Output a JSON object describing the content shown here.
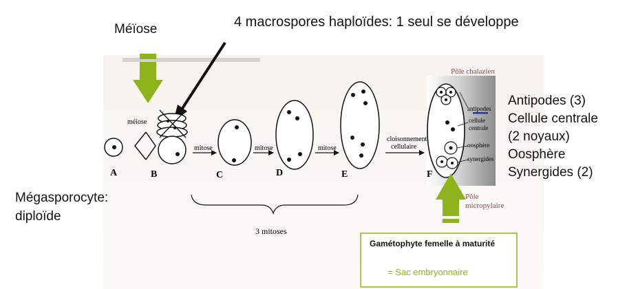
{
  "annotations": {
    "meiose_title": "Méïose",
    "macrospores": "4 macrospores haploïdes: 1 seul se développe",
    "megasporocyte_line1": "Mégasporocyte:",
    "megasporocyte_line2": "diploïde",
    "right_labels": [
      "Antipodes (3)",
      "Cellule centrale",
      "(2 noyaux)",
      "Oosphère",
      "Synergides (2)"
    ]
  },
  "figure": {
    "pole_chalazien": "Pôle chalazien",
    "pole_micropylaire_line1": "Pôle",
    "pole_micropylaire_line2": "micropylaire",
    "meiose_small": "méiose",
    "mitose": "mitose",
    "cloisonnement_line1": "cloisonnement",
    "cloisonnement_line2": "cellulaire",
    "trois_mitoses": "3 mitoses",
    "stage_letters": [
      "A",
      "B",
      "C",
      "D",
      "E",
      "F"
    ],
    "f_labels": {
      "antipodes": "antipodes",
      "cellule": "cellule",
      "centrale": "centrale",
      "oosphere": "oosphère",
      "synergides": "synergides"
    }
  },
  "box": {
    "line1": "Gamétophyte femelle à maturité",
    "line2": "= Sac embryonnaire"
  },
  "colors": {
    "green_arrow": "#8fb31c",
    "box_border": "#8fb31c",
    "pole_label": "#8a4a52",
    "antipode_mark": "#2233bb",
    "ink": "#111111"
  }
}
